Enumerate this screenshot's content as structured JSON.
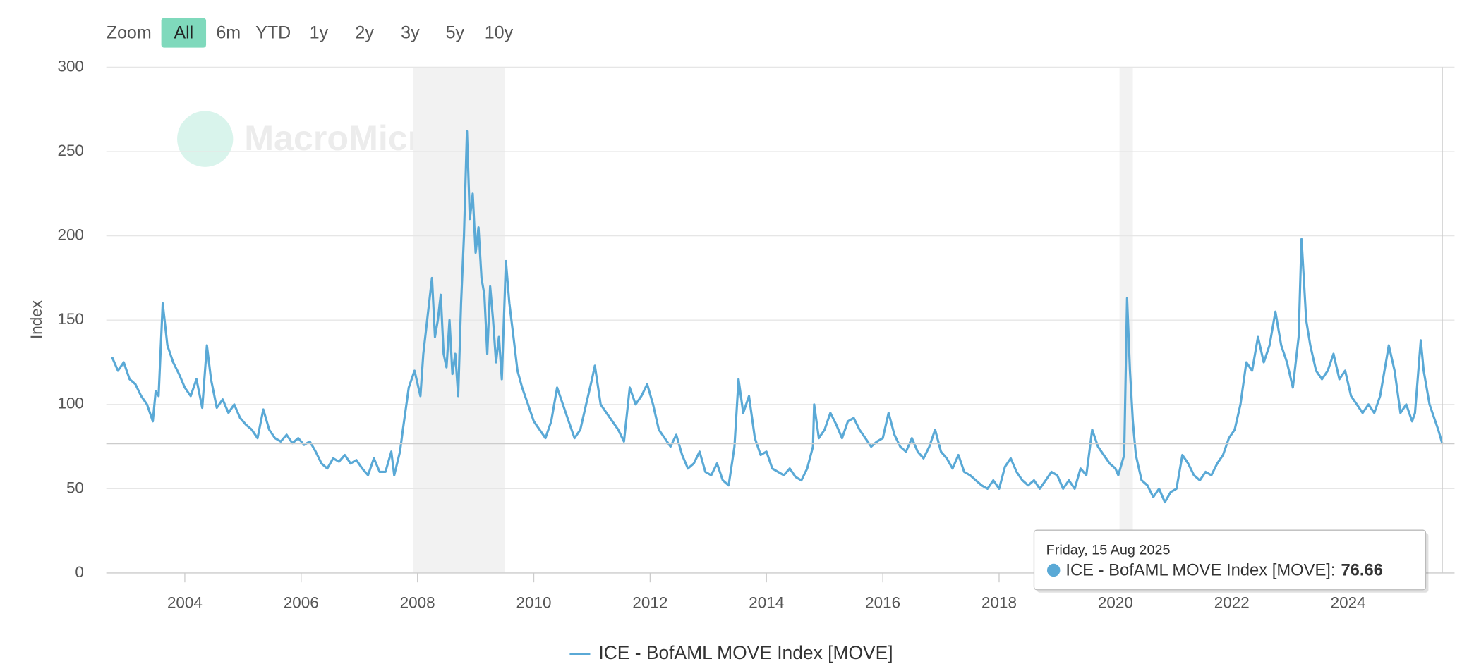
{
  "chart_data": {
    "type": "line",
    "watermark": "MacroMicro",
    "range_selector": {
      "label": "Zoom",
      "buttons": [
        "All",
        "6m",
        "YTD",
        "1y",
        "2y",
        "3y",
        "5y",
        "10y"
      ],
      "selected": 0
    },
    "y_label": "Index",
    "xlim": [
      2002.65,
      2025.83
    ],
    "xticks": [
      2004,
      2006,
      2008,
      2010,
      2012,
      2014,
      2016,
      2018,
      2020,
      2022,
      2024
    ],
    "ylim": [
      0,
      300
    ],
    "yticks": [
      0,
      50,
      100,
      150,
      200,
      250,
      300
    ],
    "grid": true,
    "recessions": [
      [
        2007.93,
        2009.5
      ],
      [
        2020.07,
        2020.3
      ]
    ],
    "legend": "bottom",
    "series": [
      {
        "name": "ICE - BofAML MOVE Index [MOVE]",
        "color": "#5aa9d6",
        "x": [
          2002.75,
          2002.85,
          2002.95,
          2003.05,
          2003.15,
          2003.25,
          2003.35,
          2003.45,
          2003.5,
          2003.55,
          2003.62,
          2003.7,
          2003.8,
          2003.9,
          2004.0,
          2004.1,
          2004.2,
          2004.3,
          2004.38,
          2004.45,
          2004.55,
          2004.65,
          2004.75,
          2004.85,
          2004.95,
          2005.05,
          2005.15,
          2005.25,
          2005.35,
          2005.45,
          2005.55,
          2005.65,
          2005.75,
          2005.85,
          2005.95,
          2006.05,
          2006.15,
          2006.25,
          2006.35,
          2006.45,
          2006.55,
          2006.65,
          2006.75,
          2006.85,
          2006.95,
          2007.05,
          2007.15,
          2007.25,
          2007.35,
          2007.45,
          2007.55,
          2007.6,
          2007.7,
          2007.75,
          2007.85,
          2007.95,
          2008.05,
          2008.1,
          2008.15,
          2008.2,
          2008.25,
          2008.3,
          2008.35,
          2008.4,
          2008.45,
          2008.5,
          2008.55,
          2008.6,
          2008.65,
          2008.7,
          2008.75,
          2008.8,
          2008.85,
          2008.9,
          2008.95,
          2009.0,
          2009.05,
          2009.1,
          2009.15,
          2009.2,
          2009.25,
          2009.3,
          2009.35,
          2009.4,
          2009.45,
          2009.52,
          2009.58,
          2009.65,
          2009.72,
          2009.8,
          2009.9,
          2010.0,
          2010.1,
          2010.2,
          2010.3,
          2010.4,
          2010.5,
          2010.6,
          2010.7,
          2010.8,
          2010.9,
          2011.0,
          2011.05,
          2011.15,
          2011.25,
          2011.35,
          2011.45,
          2011.55,
          2011.65,
          2011.75,
          2011.85,
          2011.95,
          2012.05,
          2012.15,
          2012.25,
          2012.35,
          2012.45,
          2012.55,
          2012.65,
          2012.75,
          2012.85,
          2012.95,
          2013.05,
          2013.15,
          2013.25,
          2013.35,
          2013.45,
          2013.52,
          2013.6,
          2013.7,
          2013.8,
          2013.9,
          2014.0,
          2014.1,
          2014.2,
          2014.3,
          2014.4,
          2014.5,
          2014.6,
          2014.7,
          2014.8,
          2014.82,
          2014.9,
          2015.0,
          2015.1,
          2015.2,
          2015.3,
          2015.4,
          2015.5,
          2015.6,
          2015.7,
          2015.8,
          2015.9,
          2016.0,
          2016.1,
          2016.2,
          2016.3,
          2016.4,
          2016.5,
          2016.6,
          2016.7,
          2016.8,
          2016.9,
          2017.0,
          2017.1,
          2017.2,
          2017.3,
          2017.4,
          2017.5,
          2017.6,
          2017.7,
          2017.8,
          2017.9,
          2018.0,
          2018.1,
          2018.2,
          2018.3,
          2018.4,
          2018.5,
          2018.6,
          2018.7,
          2018.8,
          2018.9,
          2019.0,
          2019.1,
          2019.2,
          2019.3,
          2019.4,
          2019.5,
          2019.6,
          2019.7,
          2019.8,
          2019.9,
          2020.0,
          2020.05,
          2020.15,
          2020.2,
          2020.25,
          2020.3,
          2020.35,
          2020.45,
          2020.55,
          2020.65,
          2020.75,
          2020.85,
          2020.95,
          2021.05,
          2021.15,
          2021.25,
          2021.35,
          2021.45,
          2021.55,
          2021.65,
          2021.75,
          2021.85,
          2021.95,
          2022.05,
          2022.15,
          2022.25,
          2022.35,
          2022.45,
          2022.55,
          2022.65,
          2022.75,
          2022.85,
          2022.95,
          2023.05,
          2023.15,
          2023.2,
          2023.28,
          2023.35,
          2023.45,
          2023.55,
          2023.65,
          2023.75,
          2023.85,
          2023.95,
          2024.05,
          2024.15,
          2024.25,
          2024.35,
          2024.45,
          2024.55,
          2024.65,
          2024.7,
          2024.8,
          2024.9,
          2025.0,
          2025.1,
          2025.15,
          2025.25,
          2025.3,
          2025.4,
          2025.5,
          2025.55,
          2025.62
        ],
        "values": [
          128,
          120,
          125,
          115,
          112,
          105,
          100,
          90,
          108,
          105,
          160,
          135,
          125,
          118,
          110,
          105,
          115,
          98,
          135,
          115,
          98,
          103,
          95,
          100,
          92,
          88,
          85,
          80,
          97,
          85,
          80,
          78,
          82,
          77,
          80,
          76,
          78,
          72,
          65,
          62,
          68,
          66,
          70,
          65,
          67,
          62,
          58,
          68,
          60,
          60,
          72,
          58,
          72,
          85,
          110,
          120,
          105,
          130,
          145,
          160,
          175,
          140,
          150,
          165,
          130,
          122,
          150,
          118,
          130,
          105,
          160,
          200,
          262,
          210,
          225,
          190,
          205,
          175,
          165,
          130,
          170,
          150,
          125,
          140,
          115,
          185,
          160,
          140,
          120,
          110,
          100,
          90,
          85,
          80,
          90,
          110,
          100,
          90,
          80,
          85,
          100,
          115,
          123,
          100,
          95,
          90,
          85,
          78,
          110,
          100,
          105,
          112,
          100,
          85,
          80,
          75,
          82,
          70,
          62,
          65,
          72,
          60,
          58,
          65,
          55,
          52,
          75,
          115,
          95,
          105,
          80,
          70,
          72,
          62,
          60,
          58,
          62,
          57,
          55,
          62,
          75,
          100,
          80,
          85,
          95,
          88,
          80,
          90,
          92,
          85,
          80,
          75,
          78,
          80,
          95,
          82,
          75,
          72,
          80,
          72,
          68,
          75,
          85,
          72,
          68,
          62,
          70,
          60,
          58,
          55,
          52,
          50,
          55,
          50,
          63,
          68,
          60,
          55,
          52,
          55,
          50,
          55,
          60,
          58,
          50,
          55,
          50,
          62,
          58,
          85,
          75,
          70,
          65,
          62,
          58,
          70,
          163,
          120,
          90,
          70,
          55,
          52,
          45,
          50,
          42,
          48,
          50,
          70,
          65,
          58,
          55,
          60,
          58,
          65,
          70,
          80,
          85,
          100,
          125,
          120,
          140,
          125,
          135,
          155,
          135,
          125,
          110,
          140,
          198,
          150,
          135,
          120,
          115,
          120,
          130,
          115,
          120,
          105,
          100,
          95,
          100,
          95,
          105,
          125,
          135,
          120,
          95,
          100,
          90,
          95,
          138,
          120,
          100,
          90,
          85,
          76.66
        ]
      }
    ],
    "tooltip": {
      "date": "Friday, 15 Aug 2025",
      "label": "ICE - BofAML MOVE Index [MOVE]:",
      "value": 76.66
    }
  }
}
